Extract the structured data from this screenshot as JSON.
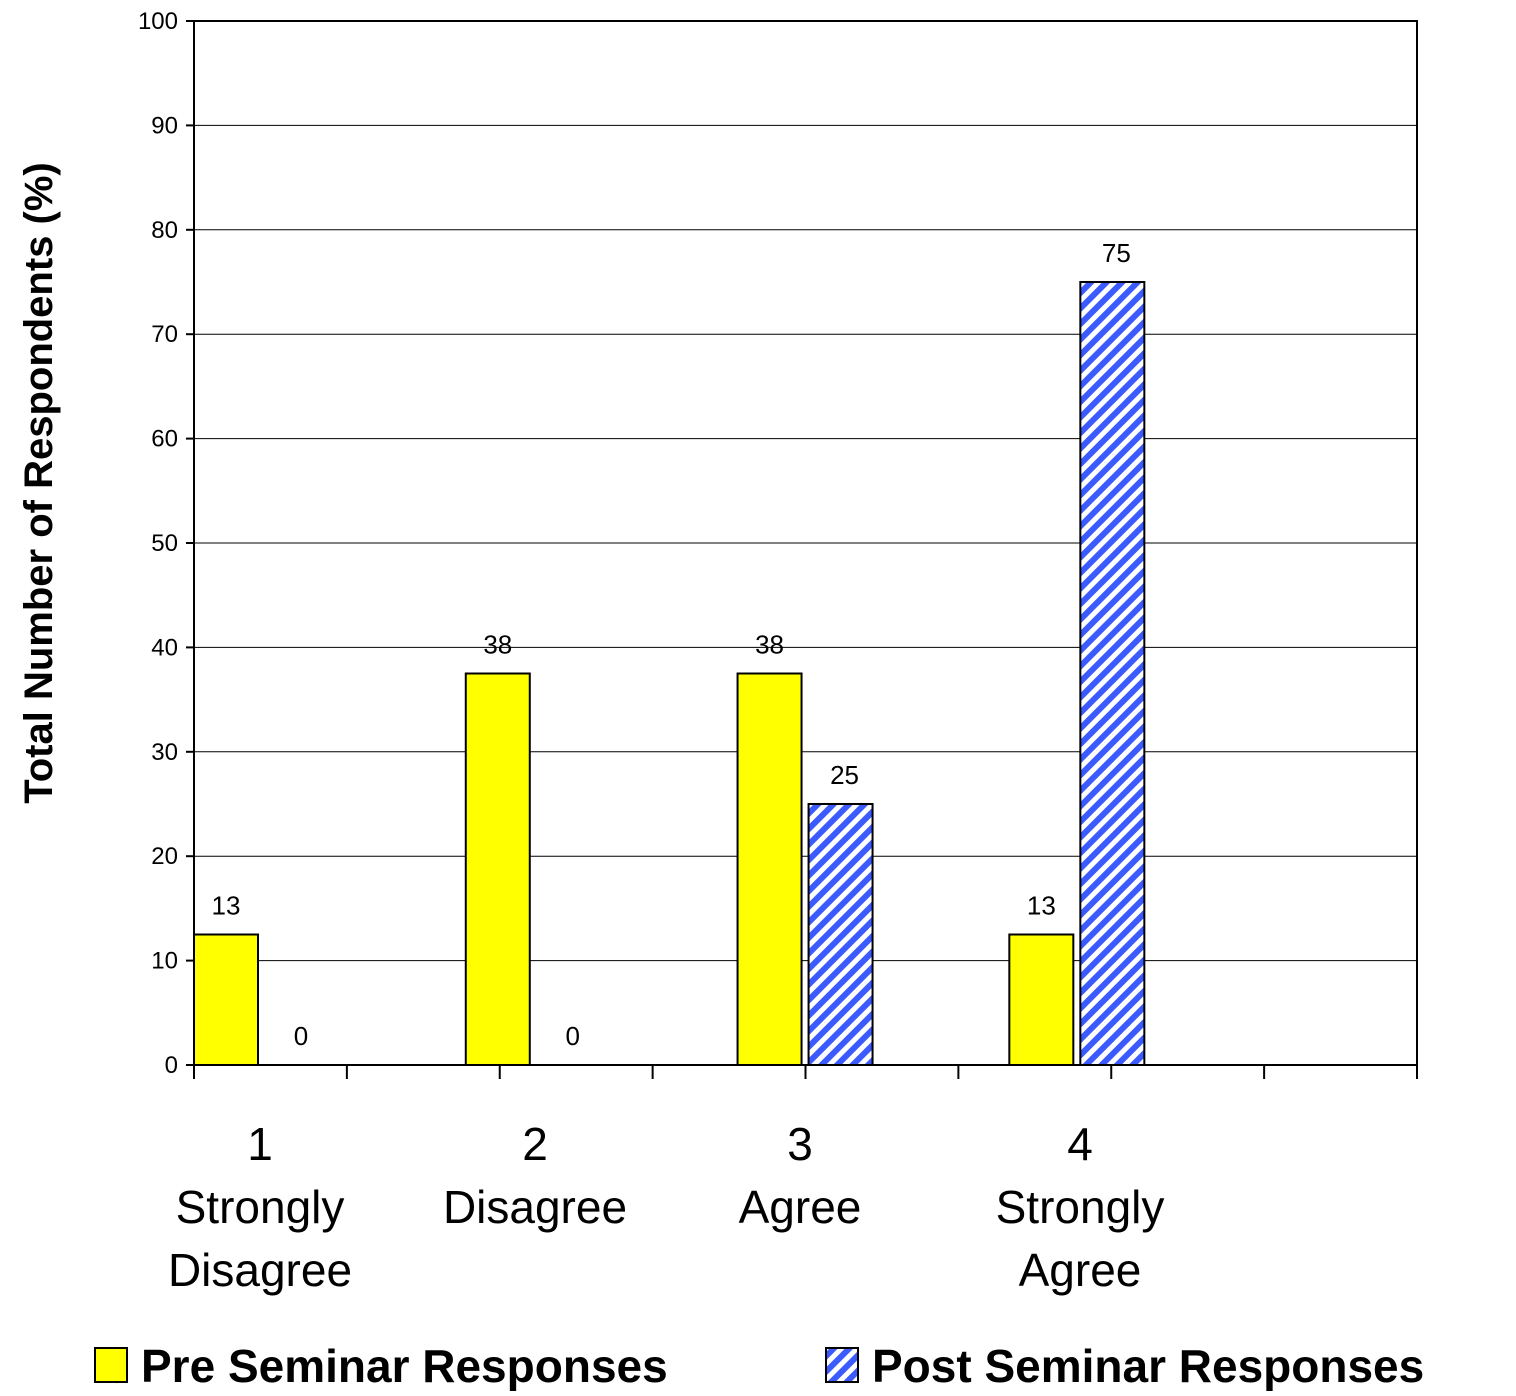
{
  "chart_data": {
    "type": "bar",
    "categories": [
      [
        "1",
        "Strongly",
        "Disagree"
      ],
      [
        "2",
        "Disagree"
      ],
      [
        "3",
        "Agree"
      ],
      [
        "4",
        "Strongly",
        "Agree"
      ]
    ],
    "series": [
      {
        "name": "Pre Seminar Responses",
        "values": [
          12.5,
          37.5,
          37.5,
          12.5
        ],
        "labels": [
          "13",
          "38",
          "38",
          "13"
        ],
        "color": "#ffff00",
        "pattern": "solid"
      },
      {
        "name": "Post Seminar Responses",
        "values": [
          0,
          0,
          25,
          75
        ],
        "labels": [
          "0",
          "0",
          "25",
          "75"
        ],
        "color": "#3b5bff",
        "pattern": "diagonal-stripes"
      }
    ],
    "ylabel": "Total Number of Respondents (%)",
    "xlabel": "",
    "title": "",
    "ylim": [
      0,
      100
    ],
    "yticks": [
      "0",
      "10",
      "20",
      "30",
      "40",
      "50",
      "60",
      "70",
      "80",
      "90",
      "100"
    ],
    "grid": true,
    "legend_position": "bottom"
  }
}
